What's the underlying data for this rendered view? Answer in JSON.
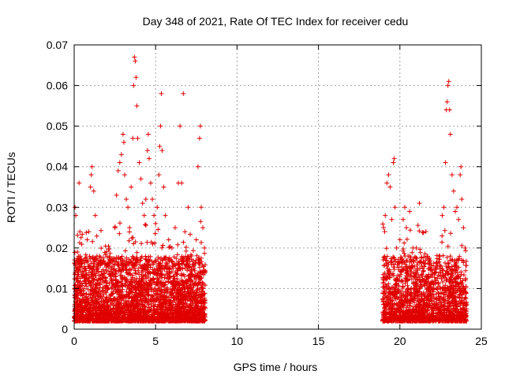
{
  "chart_data": {
    "type": "scatter",
    "title": "Day 348 of 2021, Rate Of TEC Index for receiver cedu",
    "xlabel": "GPS time / hours",
    "ylabel": "ROTI / TECUs",
    "xlim": [
      0,
      25
    ],
    "ylim": [
      0,
      0.07
    ],
    "xticks": [
      0,
      5,
      10,
      15,
      20,
      25
    ],
    "yticks": [
      0,
      0.01,
      0.02,
      0.03,
      0.04,
      0.05,
      0.06,
      0.07
    ],
    "xtick_labels": [
      "0",
      "5",
      "10",
      "15",
      "20",
      "25"
    ],
    "ytick_labels": [
      "0",
      "0.01",
      "0.02",
      "0.03",
      "0.04",
      "0.05",
      "0.06",
      "0.07"
    ],
    "grid": true,
    "marker": "+",
    "marker_color": "#e00000",
    "series": [
      {
        "values_note": "",
        "points": [
          [
            0.05,
            0.03
          ],
          [
            0.1,
            0.028
          ],
          [
            0.2,
            0.019
          ],
          [
            0.3,
            0.036
          ],
          [
            0.35,
            0.024
          ],
          [
            0.4,
            0.016
          ],
          [
            0.5,
            0.013
          ],
          [
            0.6,
            0.01
          ],
          [
            0.7,
            0.012
          ],
          [
            0.8,
            0.022
          ],
          [
            0.9,
            0.024
          ],
          [
            1.0,
            0.035
          ],
          [
            1.05,
            0.038
          ],
          [
            1.1,
            0.04
          ],
          [
            1.2,
            0.034
          ],
          [
            1.3,
            0.028
          ],
          [
            1.4,
            0.018
          ],
          [
            1.5,
            0.014
          ],
          [
            1.6,
            0.011
          ],
          [
            1.8,
            0.013
          ],
          [
            2.0,
            0.016
          ],
          [
            2.2,
            0.017
          ],
          [
            2.5,
            0.025
          ],
          [
            2.6,
            0.033
          ],
          [
            2.7,
            0.039
          ],
          [
            2.8,
            0.041
          ],
          [
            2.9,
            0.043
          ],
          [
            3.0,
            0.048
          ],
          [
            3.05,
            0.046
          ],
          [
            3.1,
            0.038
          ],
          [
            3.2,
            0.032
          ],
          [
            3.3,
            0.03
          ],
          [
            3.4,
            0.025
          ],
          [
            3.5,
            0.035
          ],
          [
            3.6,
            0.047
          ],
          [
            3.65,
            0.06
          ],
          [
            3.7,
            0.067
          ],
          [
            3.75,
            0.066
          ],
          [
            3.8,
            0.062
          ],
          [
            3.85,
            0.055
          ],
          [
            3.9,
            0.047
          ],
          [
            4.0,
            0.041
          ],
          [
            4.1,
            0.037
          ],
          [
            4.2,
            0.031
          ],
          [
            4.3,
            0.028
          ],
          [
            4.4,
            0.032
          ],
          [
            4.5,
            0.044
          ],
          [
            4.55,
            0.048
          ],
          [
            4.6,
            0.042
          ],
          [
            4.7,
            0.036
          ],
          [
            4.8,
            0.032
          ],
          [
            4.9,
            0.028
          ],
          [
            5.0,
            0.026
          ],
          [
            5.1,
            0.03
          ],
          [
            5.2,
            0.038
          ],
          [
            5.25,
            0.045
          ],
          [
            5.3,
            0.05
          ],
          [
            5.35,
            0.058
          ],
          [
            5.4,
            0.044
          ],
          [
            5.5,
            0.035
          ],
          [
            5.6,
            0.028
          ],
          [
            5.8,
            0.022
          ],
          [
            6.0,
            0.02
          ],
          [
            6.2,
            0.025
          ],
          [
            6.4,
            0.036
          ],
          [
            6.5,
            0.05
          ],
          [
            6.6,
            0.036
          ],
          [
            6.7,
            0.058
          ],
          [
            6.8,
            0.024
          ],
          [
            7.0,
            0.03
          ],
          [
            7.2,
            0.018
          ],
          [
            7.5,
            0.022
          ],
          [
            7.6,
            0.04
          ],
          [
            7.7,
            0.047
          ],
          [
            7.75,
            0.05
          ],
          [
            7.8,
            0.03
          ],
          [
            7.9,
            0.025
          ],
          [
            8.0,
            0.02
          ],
          [
            19.0,
            0.025
          ],
          [
            19.1,
            0.028
          ],
          [
            19.2,
            0.036
          ],
          [
            19.3,
            0.038
          ],
          [
            19.4,
            0.035
          ],
          [
            19.5,
            0.027
          ],
          [
            19.6,
            0.041
          ],
          [
            19.65,
            0.042
          ],
          [
            19.7,
            0.03
          ],
          [
            19.8,
            0.02
          ],
          [
            20.0,
            0.022
          ],
          [
            20.2,
            0.027
          ],
          [
            20.3,
            0.03
          ],
          [
            20.4,
            0.025
          ],
          [
            20.5,
            0.018
          ],
          [
            20.6,
            0.029
          ],
          [
            20.8,
            0.02
          ],
          [
            21.0,
            0.02
          ],
          [
            21.2,
            0.031
          ],
          [
            21.4,
            0.015
          ],
          [
            21.6,
            0.013
          ],
          [
            21.8,
            0.016
          ],
          [
            22.0,
            0.014
          ],
          [
            22.2,
            0.012
          ],
          [
            22.4,
            0.018
          ],
          [
            22.6,
            0.028
          ],
          [
            22.7,
            0.03
          ],
          [
            22.8,
            0.041
          ],
          [
            22.85,
            0.054
          ],
          [
            22.9,
            0.056
          ],
          [
            22.95,
            0.06
          ],
          [
            23.0,
            0.061
          ],
          [
            23.05,
            0.054
          ],
          [
            23.1,
            0.048
          ],
          [
            23.2,
            0.038
          ],
          [
            23.3,
            0.034
          ],
          [
            23.4,
            0.029
          ],
          [
            23.5,
            0.03
          ],
          [
            23.6,
            0.027
          ],
          [
            23.7,
            0.038
          ],
          [
            23.75,
            0.04
          ],
          [
            23.8,
            0.032
          ],
          [
            23.9,
            0.025
          ],
          [
            24.0,
            0.02
          ]
        ]
      }
    ]
  }
}
